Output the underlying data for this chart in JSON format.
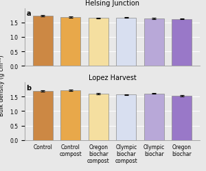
{
  "subplot_a_title": "Helsing Junction",
  "subplot_b_title": "Lopez Harvest",
  "subplot_a_label": "a",
  "subplot_b_label": "b",
  "ylabel": "Bulk density (g cm⁻³)",
  "categories": [
    "Control",
    "Control\ncompost",
    "Oregon\nbiochar\ncompost",
    "Olympic\nbiochar\ncompost",
    "Olympic\nbiochar",
    "Oregon\nbiochar"
  ],
  "values_a": [
    1.72,
    1.68,
    1.65,
    1.67,
    1.64,
    1.62
  ],
  "errors_a": [
    0.025,
    0.018,
    0.02,
    0.018,
    0.018,
    0.018
  ],
  "values_b": [
    1.7,
    1.72,
    1.6,
    1.57,
    1.61,
    1.53
  ],
  "errors_b": [
    0.02,
    0.02,
    0.018,
    0.015,
    0.018,
    0.022
  ],
  "bar_colors": [
    "#cc8844",
    "#e8a84a",
    "#f5dfa0",
    "#d8dff0",
    "#b8a8d8",
    "#9978c8"
  ],
  "ylim": [
    0.0,
    2.0
  ],
  "yticks": [
    0.0,
    0.5,
    1.0,
    1.5
  ],
  "background_color": "#e8e8e8",
  "bar_edgecolor": "#888888",
  "bar_linewidth": 0.5,
  "tick_fontsize": 5.5,
  "label_fontsize": 6,
  "title_fontsize": 7
}
